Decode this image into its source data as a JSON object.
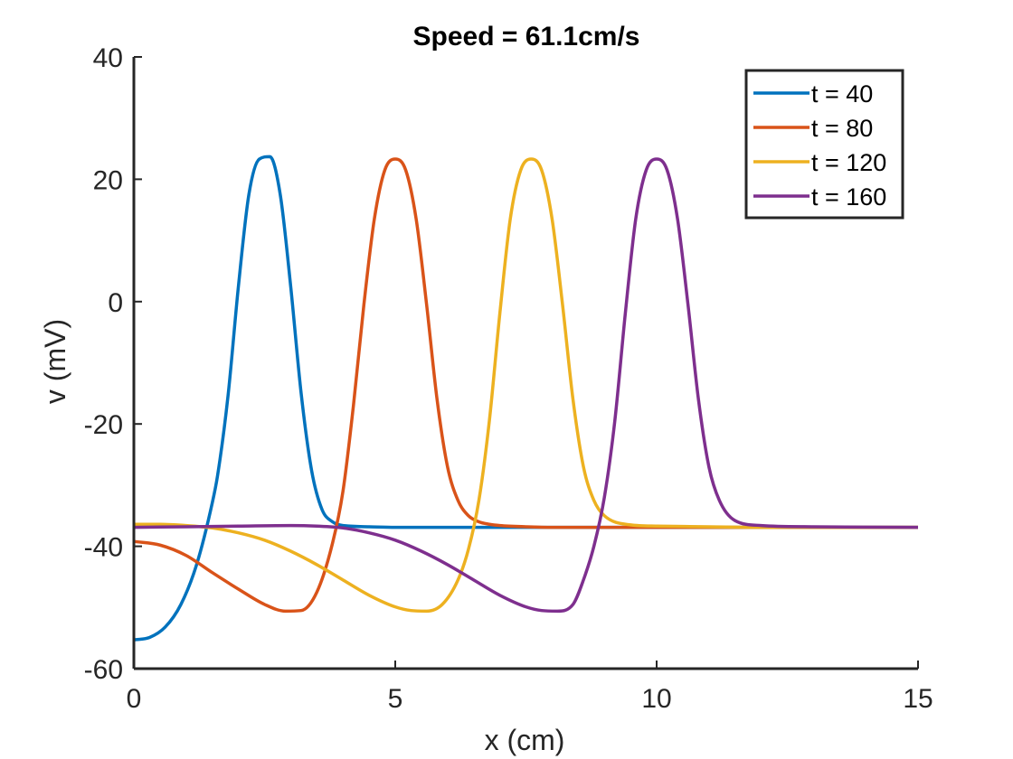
{
  "chart_data": {
    "type": "line",
    "title": "Speed =  61.1cm/s",
    "xlabel": "x (cm)",
    "ylabel": "v (mV)",
    "xlim": [
      0,
      15
    ],
    "ylim": [
      -60,
      40
    ],
    "xticks": [
      0,
      5,
      10,
      15
    ],
    "yticks": [
      -60,
      -40,
      -20,
      0,
      20,
      40
    ],
    "grid": false,
    "legend_position": "top-right",
    "colors": [
      "#0072BD",
      "#D95319",
      "#EDB120",
      "#7E2F8E"
    ],
    "series": [
      {
        "name": "t = 40",
        "x": [
          0.0,
          0.3,
          0.6,
          0.9,
          1.2,
          1.5,
          1.6,
          1.8,
          2.0,
          2.2,
          2.4,
          2.6,
          2.8,
          3.0,
          3.2,
          3.4,
          3.6,
          3.8,
          4.0,
          4.5,
          5.0,
          6.0,
          8.0,
          10.0,
          12.0,
          15.0
        ],
        "y": [
          -55.3,
          -54.9,
          -53.2,
          -49.5,
          -43.0,
          -32.9,
          -28.5,
          -15.5,
          2.5,
          17.5,
          23.3,
          23.7,
          17.5,
          2.5,
          -15.0,
          -27.6,
          -34.0,
          -36.0,
          -36.6,
          -36.8,
          -36.9,
          -36.9,
          -36.9,
          -36.9,
          -36.9,
          -36.9
        ]
      },
      {
        "name": "t = 80",
        "x": [
          0.0,
          0.5,
          1.0,
          1.5,
          2.0,
          2.5,
          2.9,
          3.2,
          3.5,
          3.8,
          4.0,
          4.2,
          4.4,
          4.6,
          4.8,
          5.0,
          5.2,
          5.4,
          5.6,
          5.8,
          6.0,
          6.2,
          6.4,
          6.6,
          6.8,
          7.0,
          7.5,
          8.0,
          10.0,
          12.0,
          15.0
        ],
        "y": [
          -39.2,
          -39.8,
          -41.5,
          -44.3,
          -47.0,
          -49.5,
          -50.6,
          -50.5,
          -47.5,
          -39.5,
          -31.0,
          -17.0,
          -0.5,
          13.5,
          21.5,
          23.3,
          21.5,
          13.5,
          -0.5,
          -16.0,
          -27.0,
          -32.5,
          -35.0,
          -36.0,
          -36.4,
          -36.6,
          -36.8,
          -36.9,
          -36.9,
          -36.9,
          -36.9
        ]
      },
      {
        "name": "t = 120",
        "x": [
          0.0,
          0.5,
          1.0,
          1.5,
          2.0,
          2.5,
          3.0,
          3.5,
          4.0,
          4.5,
          5.0,
          5.3,
          5.6,
          5.9,
          6.2,
          6.4,
          6.6,
          6.8,
          7.0,
          7.2,
          7.4,
          7.6,
          7.8,
          8.0,
          8.2,
          8.4,
          8.6,
          8.8,
          9.0,
          9.5,
          10.0,
          11.0,
          12.0,
          15.0
        ],
        "y": [
          -36.4,
          -36.4,
          -36.6,
          -37.0,
          -37.8,
          -39.0,
          -40.8,
          -43.0,
          -45.5,
          -48.0,
          -49.9,
          -50.5,
          -50.6,
          -49.5,
          -45.5,
          -40.5,
          -32.5,
          -19.5,
          -2.0,
          13.5,
          21.5,
          23.3,
          21.5,
          13.5,
          -0.5,
          -16.0,
          -27.0,
          -32.5,
          -35.0,
          -36.5,
          -36.7,
          -36.8,
          -36.9,
          -36.9
        ]
      },
      {
        "name": "t = 160",
        "x": [
          0.0,
          1.0,
          2.0,
          3.0,
          3.5,
          4.0,
          4.5,
          5.0,
          5.5,
          6.0,
          6.5,
          7.0,
          7.5,
          7.8,
          8.1,
          8.4,
          8.6,
          8.8,
          9.0,
          9.2,
          9.4,
          9.6,
          9.8,
          10.0,
          10.2,
          10.4,
          10.6,
          10.8,
          11.0,
          11.2,
          11.5,
          12.0,
          13.0,
          15.0
        ],
        "y": [
          -36.9,
          -36.8,
          -36.7,
          -36.6,
          -36.7,
          -37.0,
          -37.8,
          -39.0,
          -40.8,
          -43.0,
          -45.5,
          -48.0,
          -49.9,
          -50.5,
          -50.6,
          -49.5,
          -45.5,
          -40.0,
          -32.0,
          -19.5,
          -2.0,
          13.5,
          21.5,
          23.3,
          21.5,
          13.5,
          -0.5,
          -16.0,
          -27.0,
          -32.5,
          -35.8,
          -36.6,
          -36.8,
          -36.9
        ]
      }
    ]
  }
}
